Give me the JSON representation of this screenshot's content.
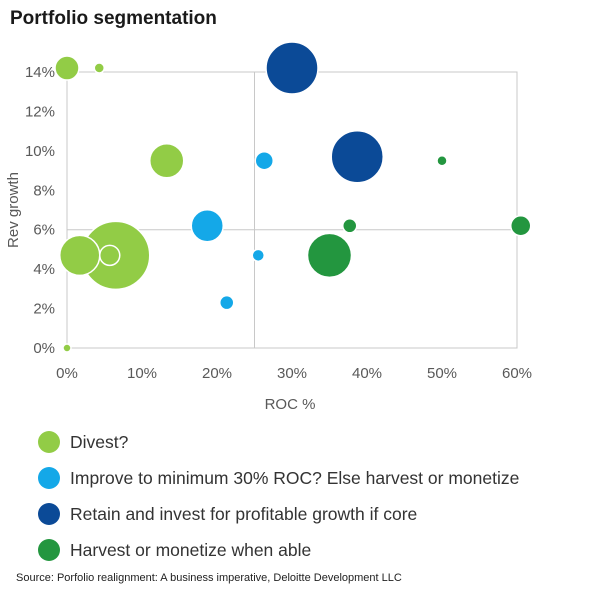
{
  "title": "Portfolio segmentation",
  "source": "Source: Porfolio realignment: A business imperative, Deloitte Development LLC",
  "chart_data": {
    "type": "scatter",
    "subtype": "bubble",
    "xlabel": "ROC %",
    "ylabel": "Rev growth",
    "xlim": [
      0,
      60
    ],
    "ylim": [
      0,
      14
    ],
    "x_ticks": [
      "0%",
      "10%",
      "20%",
      "30%",
      "40%",
      "50%",
      "60%"
    ],
    "y_ticks": [
      "0%",
      "2%",
      "4%",
      "6%",
      "8%",
      "10%",
      "12%",
      "14%"
    ],
    "x_tick_values": [
      0,
      10,
      20,
      30,
      40,
      50,
      60
    ],
    "y_tick_values": [
      0,
      2,
      4,
      6,
      8,
      10,
      12,
      14
    ],
    "reference_lines": {
      "x": 25,
      "y": 6
    },
    "grid": false,
    "legend_position": "bottom",
    "series": [
      {
        "name": "Divest?",
        "color": "#92cc46",
        "points": [
          {
            "x": 0,
            "y": 14.2,
            "size": 12
          },
          {
            "x": 4.3,
            "y": 14.2,
            "size": 5
          },
          {
            "x": 13.3,
            "y": 9.5,
            "size": 17
          },
          {
            "x": 1.7,
            "y": 4.7,
            "size": 20
          },
          {
            "x": 6.5,
            "y": 4.7,
            "size": 34
          },
          {
            "x": 5.7,
            "y": 4.7,
            "size": 10
          },
          {
            "x": 0,
            "y": 0,
            "size": 4
          }
        ]
      },
      {
        "name": "Improve to minimum 30% ROC? Else harvest or monetize",
        "color": "#14a8e8",
        "points": [
          {
            "x": 26.3,
            "y": 9.5,
            "size": 9
          },
          {
            "x": 18.7,
            "y": 6.2,
            "size": 16
          },
          {
            "x": 25.5,
            "y": 4.7,
            "size": 6
          },
          {
            "x": 21.3,
            "y": 2.3,
            "size": 7
          }
        ]
      },
      {
        "name": "Retain and invest for profitable growth if core",
        "color": "#0b4a97",
        "points": [
          {
            "x": 30,
            "y": 14.2,
            "size": 26
          },
          {
            "x": 38.7,
            "y": 9.7,
            "size": 26
          }
        ]
      },
      {
        "name": "Harvest or monetize when able",
        "color": "#23963f",
        "points": [
          {
            "x": 35,
            "y": 4.7,
            "size": 22
          },
          {
            "x": 37.7,
            "y": 6.2,
            "size": 7
          },
          {
            "x": 50,
            "y": 9.5,
            "size": 5
          },
          {
            "x": 60.5,
            "y": 6.2,
            "size": 10
          }
        ]
      }
    ]
  }
}
